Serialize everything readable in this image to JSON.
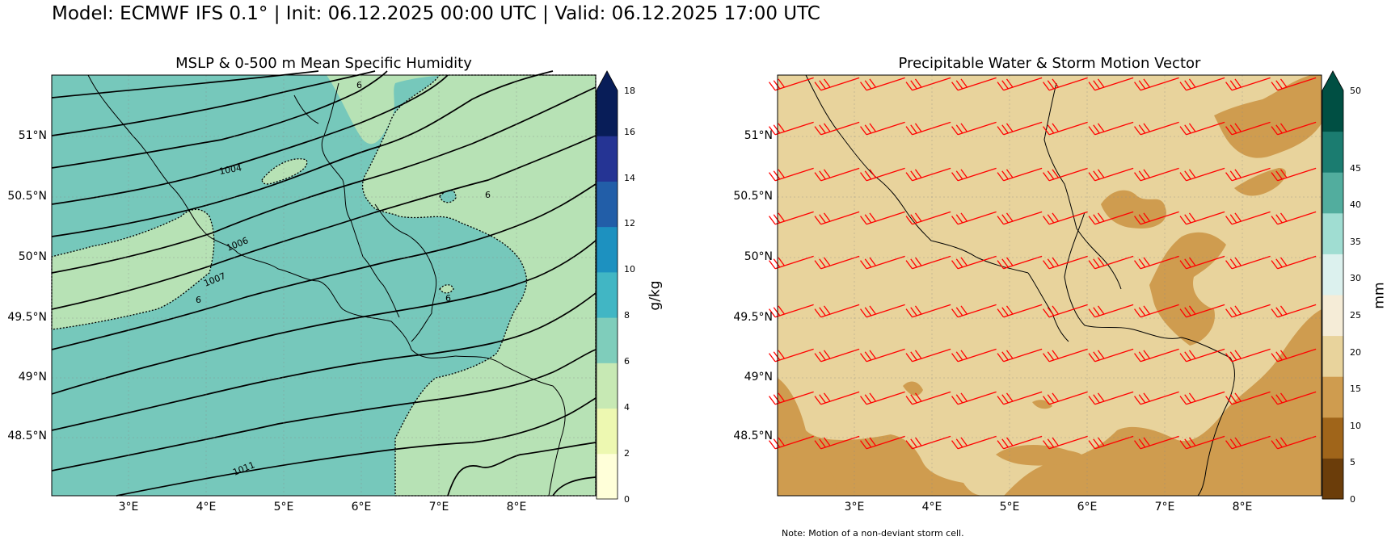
{
  "suptitle": "Model: ECMWF IFS 0.1° | Init: 06.12.2025 00:00 UTC | Valid: 06.12.2025 17:00 UTC",
  "left_panel": {
    "title": "MSLP & 0-500 m Mean Specific Humidity",
    "lat_ticks": [
      "51°N",
      "50.5°N",
      "50°N",
      "49.5°N",
      "49°N",
      "48.5°N"
    ],
    "lon_ticks": [
      "3°E",
      "4°E",
      "5°E",
      "6°E",
      "7°E",
      "8°E"
    ],
    "contour_labels": [
      "1004",
      "1006",
      "1007",
      "1011",
      "6",
      "6",
      "6",
      "6"
    ],
    "colorbar": {
      "label": "g/kg",
      "ticks": [
        "0",
        "2",
        "4",
        "6",
        "8",
        "10",
        "12",
        "14",
        "16",
        "18"
      ],
      "colors": [
        "#ffffd9",
        "#edf8b1",
        "#c7e9b4",
        "#7fcdbb",
        "#41b6c4",
        "#1d91c0",
        "#225ea8",
        "#253494",
        "#081d58"
      ],
      "fill_low": "#b7e2b5",
      "fill_high": "#76c8bb"
    }
  },
  "right_panel": {
    "title": "Precipitable Water & Storm Motion Vector",
    "lat_ticks": [
      "51°N",
      "50.5°N",
      "50°N",
      "49.5°N",
      "49°N",
      "48.5°N"
    ],
    "lon_ticks": [
      "3°E",
      "4°E",
      "5°E",
      "6°E",
      "7°E",
      "8°E"
    ],
    "note": "Note: Motion of a non-deviant storm cell.",
    "barb_color": "#ff0000",
    "colorbar": {
      "label": "mm",
      "ticks": [
        "0",
        "5",
        "10",
        "15",
        "20",
        "25",
        "30",
        "35",
        "40",
        "45",
        "50"
      ],
      "colors": [
        "#6b3d0a",
        "#a0651a",
        "#cf9c4f",
        "#e8d39c",
        "#f5ecd7",
        "#dcf1ee",
        "#a0ddd2",
        "#52ad9e",
        "#1b7c70",
        "#004f43"
      ],
      "fill_base": "#e8d39c",
      "fill_dry": "#cf9c4f"
    }
  }
}
